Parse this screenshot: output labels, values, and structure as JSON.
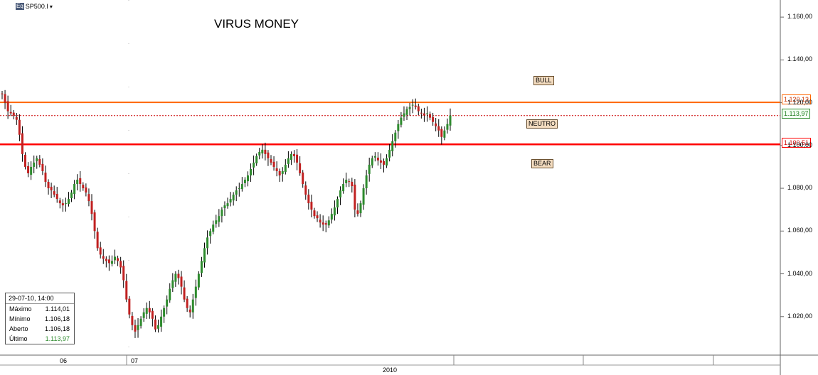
{
  "header": {
    "ticker": "SP500.I",
    "eq_badge": "Eq",
    "dropdown_glyph": "▾"
  },
  "chart_data": {
    "type": "candlestick",
    "title": "VIRUS MONEY",
    "ylim": [
      1002,
      1168
    ],
    "y_ticks": [
      "1.160,00",
      "1.140,00",
      "1.120,00",
      "1.100,00",
      "1.080,00",
      "1.060,00",
      "1.040,00",
      "1.020,00"
    ],
    "y_tick_values": [
      1160,
      1140,
      1120,
      1100,
      1080,
      1060,
      1040,
      1020
    ],
    "x_labels_top": [
      "06",
      "07"
    ],
    "x_label_bottom": "2010",
    "zones": [
      {
        "label": "BULL",
        "level": 1120.13,
        "level_label": "1.120,13",
        "color": "#ff6600"
      },
      {
        "label": "NEUTRO",
        "level": 1113.97,
        "level_label": "1.113,97",
        "color": "#cc0000"
      },
      {
        "label": "BEAR",
        "level": 1100.51,
        "level_label": "1.100,51",
        "color": "#ff0000"
      }
    ],
    "last_price_label": "1.113,97",
    "closes": [
      1124,
      1120,
      1116,
      1115,
      1114,
      1112,
      1105,
      1096,
      1090,
      1087,
      1090,
      1092,
      1094,
      1091,
      1088,
      1083,
      1080,
      1079,
      1077,
      1075,
      1073,
      1072,
      1073,
      1075,
      1078,
      1082,
      1084,
      1082,
      1080,
      1078,
      1074,
      1068,
      1060,
      1052,
      1049,
      1047,
      1046,
      1045,
      1046,
      1048,
      1046,
      1043,
      1037,
      1028,
      1021,
      1016,
      1013,
      1016,
      1019,
      1022,
      1024,
      1022,
      1019,
      1014,
      1016,
      1020,
      1024,
      1028,
      1033,
      1037,
      1040,
      1038,
      1034,
      1028,
      1024,
      1022,
      1028,
      1034,
      1040,
      1046,
      1052,
      1057,
      1060,
      1063,
      1065,
      1067,
      1070,
      1072,
      1073,
      1075,
      1077,
      1079,
      1080,
      1082,
      1084,
      1086,
      1089,
      1092,
      1095,
      1097,
      1098,
      1096,
      1094,
      1092,
      1090,
      1088,
      1086,
      1088,
      1091,
      1094,
      1096,
      1095,
      1092,
      1087,
      1082,
      1077,
      1073,
      1070,
      1067,
      1066,
      1064,
      1063,
      1063,
      1065,
      1068,
      1071,
      1075,
      1079,
      1082,
      1084,
      1083,
      1081,
      1070,
      1068,
      1073,
      1080,
      1086,
      1091,
      1094,
      1095,
      1093,
      1092,
      1091,
      1094,
      1098,
      1102,
      1106,
      1110,
      1113,
      1115,
      1117,
      1118,
      1119,
      1118,
      1116,
      1115,
      1114,
      1115,
      1113,
      1111,
      1109,
      1107,
      1104,
      1107,
      1110,
      1114
    ]
  },
  "info_box": {
    "date": "29-07-10, 14:00",
    "rows": [
      {
        "label": "Máximo",
        "value": "1.114,01"
      },
      {
        "label": "Mínimo",
        "value": "1.106,18"
      },
      {
        "label": "Aberto",
        "value": "1.106,18"
      },
      {
        "label": "Último",
        "value": "1.113,97"
      }
    ]
  },
  "colors": {
    "up": "#2e8b2e",
    "down": "#c02020",
    "wick": "#000000",
    "last": "#2e8b2e"
  }
}
